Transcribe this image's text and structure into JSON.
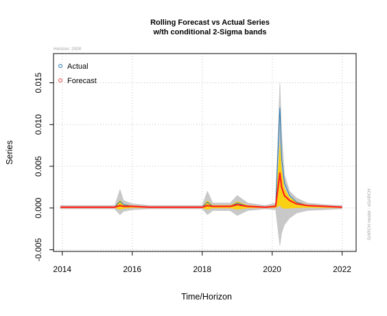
{
  "chart_data": {
    "type": "line",
    "title_line1": "Rolling Forecast vs Actual Series",
    "title_line2": "w/th conditional 2-Sigma bands",
    "subtitle": "Horizon: 2000",
    "xlabel": "Time/Horizon",
    "ylabel": "Series",
    "side_note": "GARCH model : sGARCH",
    "xlim": [
      2013.75,
      2022.4
    ],
    "ylim": [
      -0.0052,
      0.0185
    ],
    "x_ticks": [
      2014,
      2016,
      2018,
      2020,
      2022
    ],
    "x_tick_labels": [
      "2014",
      "2016",
      "2018",
      "2020",
      "2022"
    ],
    "y_ticks": [
      -0.005,
      0.0,
      0.005,
      0.01,
      0.015
    ],
    "y_tick_labels": [
      "-0.005",
      "0.000",
      "0.005",
      "0.010",
      "0.015"
    ],
    "grid": true,
    "legend_position": "top-left",
    "legend": [
      {
        "label": "Actual",
        "color": "#1f77b4",
        "marker": "circle"
      },
      {
        "label": "Forecast",
        "color": "#e8413a",
        "marker": "circle"
      }
    ],
    "colors": {
      "actual_band": "#c8c8c8",
      "sigma_band": "#ffd000",
      "actual_line": "#1f77b4",
      "forecast_line": "#ff2020",
      "grid": "#c0c0c0"
    },
    "series": [
      {
        "name": "Actual",
        "x": [
          2013.95,
          2014.5,
          2015.0,
          2015.5,
          2015.65,
          2015.75,
          2016.0,
          2016.5,
          2017.0,
          2017.5,
          2018.0,
          2018.15,
          2018.3,
          2018.8,
          2019.0,
          2019.3,
          2019.8,
          2020.1,
          2020.22,
          2020.27,
          2020.35,
          2020.5,
          2020.7,
          2021.0,
          2021.5,
          2022.0
        ],
        "y": [
          0.0001,
          0.0001,
          0.0001,
          0.0001,
          0.0008,
          0.0004,
          0.0002,
          0.0001,
          0.0001,
          0.0001,
          0.0001,
          0.0007,
          0.0002,
          0.0002,
          0.0006,
          0.0002,
          0.0001,
          0.0002,
          0.012,
          0.006,
          0.003,
          0.0015,
          0.0007,
          0.0003,
          0.0002,
          0.0001
        ]
      },
      {
        "name": "Forecast",
        "x": [
          2013.95,
          2014.5,
          2015.0,
          2015.5,
          2015.65,
          2015.75,
          2016.0,
          2016.5,
          2017.0,
          2017.5,
          2018.0,
          2018.15,
          2018.3,
          2018.8,
          2019.0,
          2019.3,
          2019.8,
          2020.1,
          2020.22,
          2020.27,
          2020.35,
          2020.5,
          2020.7,
          2021.0,
          2021.5,
          2022.0
        ],
        "y": [
          0.0001,
          0.0001,
          0.0001,
          0.0001,
          0.0003,
          0.0002,
          0.0002,
          0.0001,
          0.0001,
          0.0001,
          0.0001,
          0.0003,
          0.0002,
          0.0002,
          0.0004,
          0.0002,
          0.0001,
          0.0002,
          0.0042,
          0.0025,
          0.0015,
          0.0009,
          0.0005,
          0.0003,
          0.0002,
          0.0001
        ]
      },
      {
        "name": "Upper band",
        "x": [
          2013.95,
          2014.5,
          2015.0,
          2015.5,
          2015.65,
          2015.75,
          2016.0,
          2016.5,
          2017.0,
          2017.5,
          2018.0,
          2018.15,
          2018.3,
          2018.8,
          2019.0,
          2019.3,
          2019.8,
          2020.1,
          2020.22,
          2020.27,
          2020.35,
          2020.5,
          2020.7,
          2021.0,
          2021.5,
          2022.0
        ],
        "y": [
          0.0003,
          0.0003,
          0.0003,
          0.0003,
          0.0022,
          0.0009,
          0.0005,
          0.0003,
          0.0003,
          0.0003,
          0.0003,
          0.002,
          0.0006,
          0.0006,
          0.0015,
          0.0006,
          0.0003,
          0.0006,
          0.015,
          0.009,
          0.004,
          0.002,
          0.0012,
          0.0006,
          0.0004,
          0.0003
        ]
      },
      {
        "name": "Lower band",
        "x": [
          2013.95,
          2014.5,
          2015.0,
          2015.5,
          2015.65,
          2015.75,
          2016.0,
          2016.5,
          2017.0,
          2017.5,
          2018.0,
          2018.15,
          2018.3,
          2018.8,
          2019.0,
          2019.3,
          2019.8,
          2020.1,
          2020.22,
          2020.27,
          2020.35,
          2020.5,
          2020.7,
          2021.0,
          2021.5,
          2022.0
        ],
        "y": [
          -0.0001,
          -0.0001,
          -0.0001,
          -0.0001,
          -0.0008,
          -0.0004,
          -0.0002,
          -0.0001,
          -0.0001,
          -0.0001,
          -0.0001,
          -0.0008,
          -0.0003,
          -0.0003,
          -0.0009,
          -0.0003,
          -0.0001,
          -0.0002,
          -0.0045,
          -0.003,
          -0.002,
          -0.0012,
          -0.0006,
          -0.0003,
          -0.0002,
          -0.0001
        ]
      }
    ]
  }
}
